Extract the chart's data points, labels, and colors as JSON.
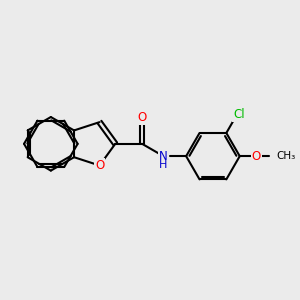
{
  "bg_color": "#ebebeb",
  "bond_color": "#000000",
  "bond_width": 1.5,
  "atom_colors": {
    "O": "#ff0000",
    "N": "#0000cd",
    "Cl": "#00bb00",
    "C": "#000000"
  },
  "font_size": 8.5,
  "xlim": [
    -3.2,
    3.8
  ],
  "ylim": [
    -1.7,
    1.7
  ]
}
